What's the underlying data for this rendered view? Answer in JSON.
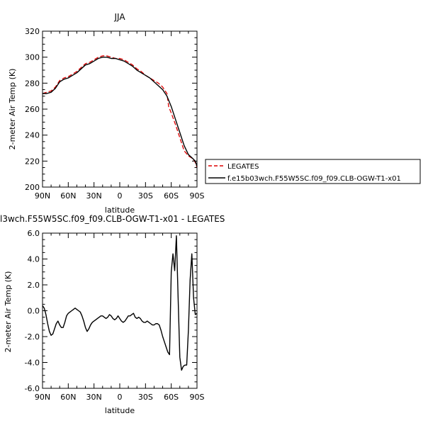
{
  "chart_data": [
    {
      "type": "line",
      "title": "JJA",
      "xlabel": "latitude",
      "ylabel": "2-meter Air Temp (K)",
      "xlim": [
        90,
        -90
      ],
      "ylim": [
        200,
        320
      ],
      "xticks": [
        90,
        60,
        30,
        0,
        -30,
        -60,
        -90
      ],
      "xtick_labels": [
        "90N",
        "60N",
        "30N",
        "0",
        "30S",
        "60S",
        "90S"
      ],
      "yticks": [
        200,
        220,
        240,
        260,
        280,
        300,
        320
      ],
      "ytick_labels": [
        "200",
        "220",
        "240",
        "260",
        "280",
        "300",
        "320"
      ],
      "legend_position": "right",
      "series": [
        {
          "name": "LEGATES",
          "color": "#dd0000",
          "dash": "dashed",
          "x": [
            90,
            85,
            80,
            75,
            70,
            65,
            60,
            55,
            50,
            45,
            40,
            35,
            30,
            25,
            20,
            15,
            10,
            5,
            0,
            -5,
            -10,
            -15,
            -20,
            -25,
            -30,
            -35,
            -40,
            -45,
            -50,
            -55,
            -57,
            -60,
            -65,
            -70,
            -75,
            -80,
            -85,
            -88,
            -90
          ],
          "y": [
            272,
            273,
            274,
            277,
            282,
            284,
            285,
            287,
            289,
            292,
            295,
            296,
            298,
            300,
            301,
            301,
            300,
            299,
            299,
            298,
            296,
            294,
            291,
            289,
            286,
            284,
            282,
            280,
            277,
            272,
            262,
            257,
            248,
            238,
            228,
            224,
            222,
            219,
            215
          ]
        },
        {
          "name": "f.e15b03wch.F55W5SC.f09_f09.CLB-OGW-T1-x01",
          "color": "#000000",
          "dash": "solid",
          "x": [
            90,
            85,
            80,
            75,
            70,
            65,
            60,
            55,
            50,
            45,
            40,
            35,
            30,
            25,
            20,
            15,
            10,
            5,
            0,
            -5,
            -10,
            -15,
            -20,
            -25,
            -30,
            -35,
            -40,
            -45,
            -50,
            -55,
            -60,
            -65,
            -70,
            -75,
            -80,
            -85,
            -88,
            -90
          ],
          "y": [
            272,
            272,
            273,
            276,
            281,
            283,
            284,
            286,
            288,
            291,
            294,
            295,
            297,
            299,
            300,
            300,
            299,
            299,
            298,
            297,
            295,
            293,
            290,
            288,
            286,
            284,
            281,
            278,
            275,
            270,
            262,
            252,
            242,
            232,
            225,
            222,
            220,
            216
          ]
        }
      ]
    },
    {
      "type": "line",
      "title": "l3wch.F55W5SC.f09_f09.CLB-OGW-T1-x01 - LEGATES",
      "xlabel": "latitude",
      "ylabel": "2-meter Air Temp (K)",
      "xlim": [
        90,
        -90
      ],
      "ylim": [
        -6,
        6
      ],
      "xticks": [
        90,
        60,
        30,
        0,
        -30,
        -60,
        -90
      ],
      "xtick_labels": [
        "90N",
        "60N",
        "30N",
        "0",
        "30S",
        "60S",
        "90S"
      ],
      "yticks": [
        -6,
        -4,
        -2,
        0,
        2,
        4,
        6
      ],
      "ytick_labels": [
        "-6.0",
        "-4.0",
        "-2.0",
        "0.0",
        "2.0",
        "4.0",
        "6.0"
      ],
      "series": [
        {
          "color": "#000000",
          "dash": "solid",
          "x": [
            90,
            88,
            86,
            84,
            82,
            80,
            78,
            76,
            74,
            72,
            70,
            68,
            66,
            64,
            62,
            60,
            58,
            56,
            54,
            52,
            50,
            48,
            46,
            44,
            42,
            40,
            38,
            36,
            34,
            32,
            30,
            28,
            26,
            24,
            22,
            20,
            18,
            16,
            14,
            12,
            10,
            8,
            6,
            4,
            2,
            0,
            -2,
            -4,
            -6,
            -8,
            -10,
            -12,
            -14,
            -16,
            -18,
            -20,
            -22,
            -24,
            -26,
            -28,
            -30,
            -32,
            -34,
            -36,
            -38,
            -40,
            -42,
            -44,
            -46,
            -48,
            -50,
            -52,
            -54,
            -56,
            -58,
            -60,
            -62,
            -64,
            -66,
            -68,
            -70,
            -72,
            -74,
            -76,
            -78,
            -80,
            -82,
            -84,
            -86,
            -88,
            -90
          ],
          "y": [
            0.4,
            0.2,
            -0.3,
            -1.0,
            -1.6,
            -1.9,
            -1.8,
            -1.4,
            -1.0,
            -0.8,
            -1.1,
            -1.3,
            -1.3,
            -0.9,
            -0.4,
            -0.2,
            -0.1,
            0.0,
            0.1,
            0.2,
            0.1,
            0.0,
            -0.1,
            -0.4,
            -0.8,
            -1.3,
            -1.6,
            -1.4,
            -1.1,
            -0.9,
            -0.8,
            -0.7,
            -0.6,
            -0.5,
            -0.4,
            -0.4,
            -0.5,
            -0.6,
            -0.5,
            -0.3,
            -0.4,
            -0.6,
            -0.7,
            -0.6,
            -0.4,
            -0.6,
            -0.8,
            -0.9,
            -0.8,
            -0.6,
            -0.4,
            -0.4,
            -0.3,
            -0.2,
            -0.5,
            -0.6,
            -0.5,
            -0.6,
            -0.8,
            -0.9,
            -0.9,
            -0.8,
            -0.9,
            -1.0,
            -1.1,
            -1.1,
            -1.0,
            -1.0,
            -1.1,
            -1.5,
            -2.0,
            -2.4,
            -2.8,
            -3.2,
            -3.4,
            3.0,
            4.4,
            3.1,
            5.8,
            1.0,
            -3.6,
            -4.6,
            -4.3,
            -4.2,
            -4.2,
            -1.5,
            2.4,
            4.4,
            1.0,
            -0.3,
            -0.2
          ]
        }
      ]
    }
  ]
}
